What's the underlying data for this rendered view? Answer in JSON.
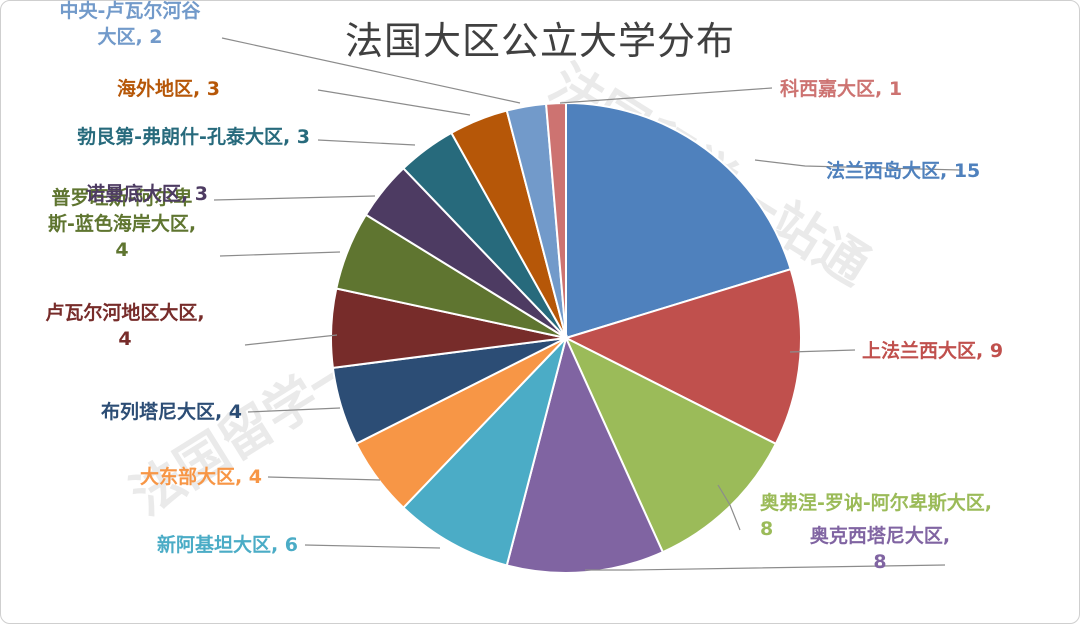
{
  "chart_data": {
    "type": "pie",
    "title": "法国大区公立大学分布",
    "slices": [
      {
        "name": "法兰西岛大区",
        "value": 15,
        "color": "#4F81BD",
        "label": [
          "法兰西岛大区, 15"
        ]
      },
      {
        "name": "上法兰西大区",
        "value": 9,
        "color": "#C0504D",
        "label": [
          "上法兰西大区, 9"
        ]
      },
      {
        "name": "奥弗涅-罗讷-阿尔卑斯大区",
        "value": 8,
        "color": "#9BBB59",
        "label": [
          "奥弗涅-罗讷-阿尔卑斯大区,",
          "8"
        ]
      },
      {
        "name": "奥克西塔尼大区",
        "value": 8,
        "color": "#8064A2",
        "label": [
          "奥克西塔尼大区,",
          "8"
        ]
      },
      {
        "name": "新阿基坦大区",
        "value": 6,
        "color": "#4BACC6",
        "label": [
          "新阿基坦大区, 6"
        ]
      },
      {
        "name": "大东部大区",
        "value": 4,
        "color": "#F79646",
        "label": [
          "大东部大区, 4"
        ]
      },
      {
        "name": "布列塔尼大区",
        "value": 4,
        "color": "#2C4D75",
        "label": [
          "布列塔尼大区, 4"
        ]
      },
      {
        "name": "卢瓦尔河地区大区",
        "value": 4,
        "color": "#772C2A",
        "label": [
          "卢瓦尔河地区大区,",
          "4"
        ]
      },
      {
        "name": "普罗旺斯-阿尔卑斯-蓝色海岸大区",
        "value": 4,
        "color": "#5F7530",
        "label": [
          "普罗旺斯-阿尔卑",
          "斯-蓝色海岸大区,",
          "4"
        ]
      },
      {
        "name": "诺曼底大区",
        "value": 3,
        "color": "#4D3B62",
        "label": [
          "诺曼底大区, 3"
        ]
      },
      {
        "name": "勃艮第-弗朗什-孔泰大区",
        "value": 3,
        "color": "#276A7C",
        "label": [
          "勃艮第-弗朗什-孔泰大区, 3"
        ]
      },
      {
        "name": "海外地区",
        "value": 3,
        "color": "#B65708",
        "label": [
          "海外地区, 3"
        ]
      },
      {
        "name": "中央-卢瓦尔河谷大区",
        "value": 2,
        "color": "#729ACA",
        "label": [
          "中央-卢瓦尔河谷",
          "大区, 2"
        ]
      },
      {
        "name": "科西嘉大区",
        "value": 1,
        "color": "#CD7371",
        "label": [
          "科西嘉大区, 1"
        ]
      }
    ]
  },
  "watermark": [
    "法国留学一站通",
    "法国留学一站通"
  ]
}
